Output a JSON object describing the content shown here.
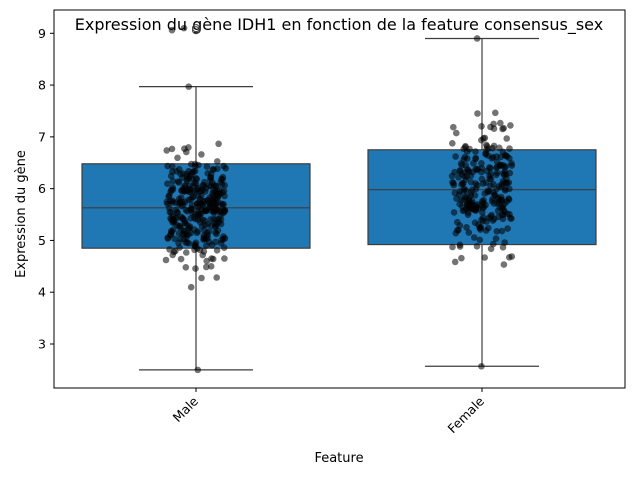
{
  "chart_data": {
    "type": "box",
    "title": "Expression du gène IDH1 en fonction de la feature consensus_sex",
    "xlabel": "Feature",
    "ylabel": "Expression du gène",
    "categories": [
      "Male",
      "Female"
    ],
    "yticks": [
      3,
      4,
      5,
      6,
      7,
      8,
      9
    ],
    "ylim": [
      2.15,
      9.45
    ],
    "boxes": [
      {
        "category": "Male",
        "whisker_low": 2.5,
        "q1": 4.85,
        "median": 5.63,
        "q3": 6.48,
        "whisker_high": 7.97,
        "outliers": [
          9.06,
          9.1
        ]
      },
      {
        "category": "Female",
        "whisker_low": 2.57,
        "q1": 4.92,
        "median": 5.98,
        "q3": 6.75,
        "whisker_high": 8.9,
        "outliers": []
      }
    ],
    "points_shown": "jittered strip of individual samples overlaid on each box",
    "colors": {
      "box_fill": "#1f77b4",
      "box_edge": "#3d3d3d",
      "points": "#000000"
    },
    "grid": false
  }
}
